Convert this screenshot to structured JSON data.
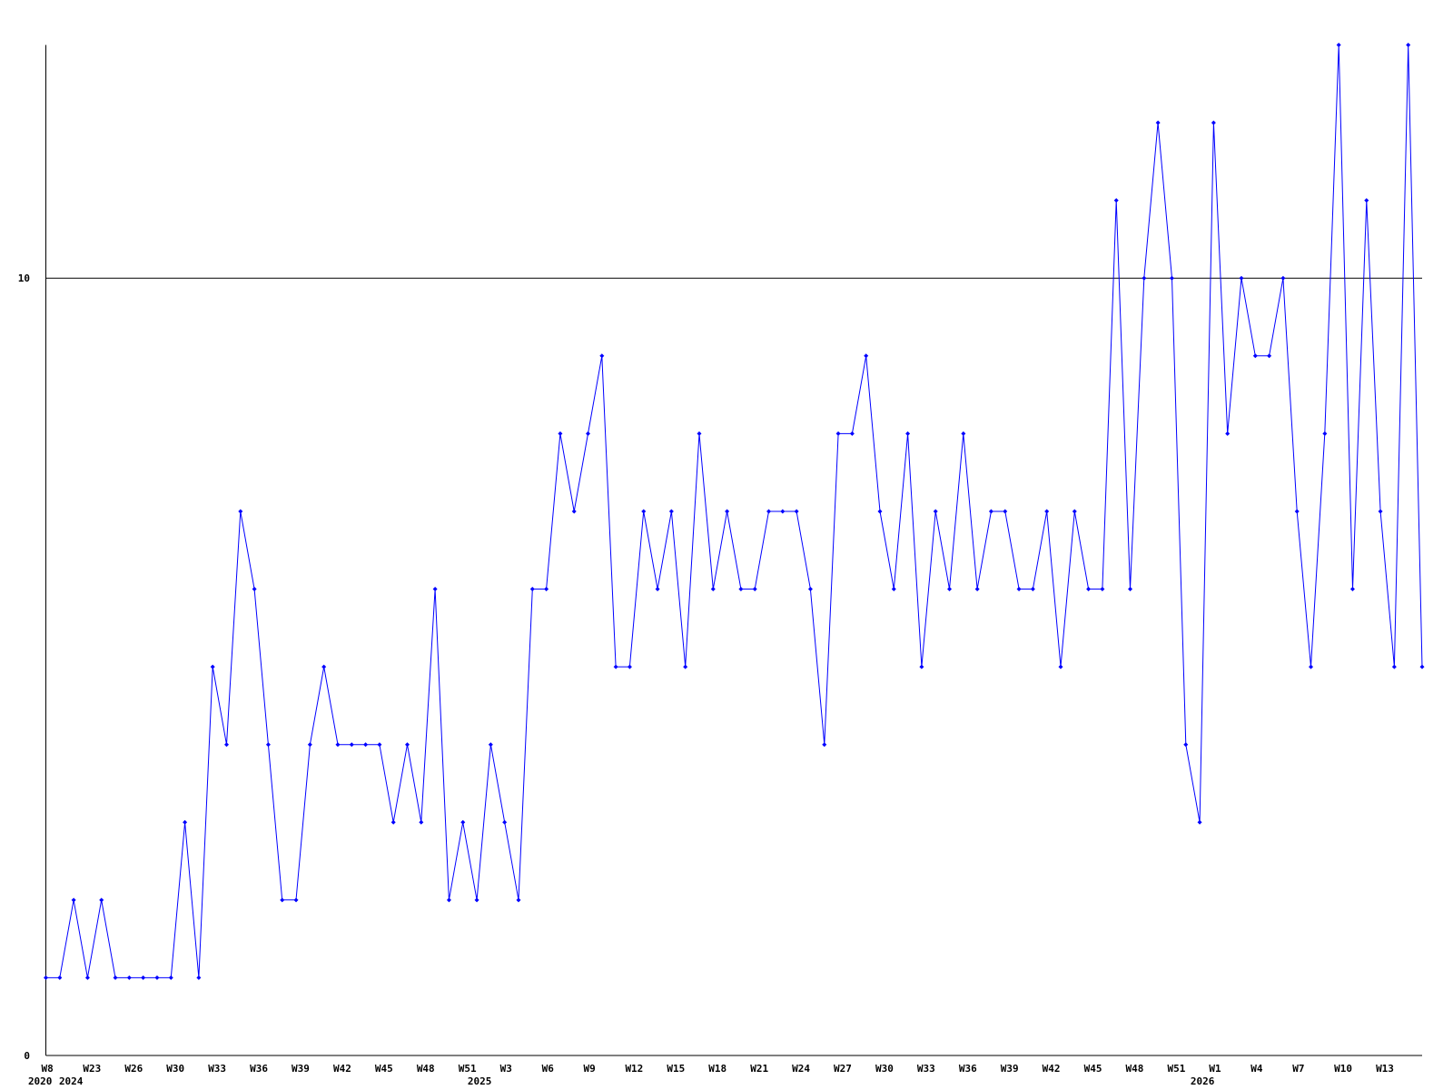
{
  "chart_data": {
    "type": "line",
    "title": "",
    "xlabel": "",
    "ylabel": "",
    "ylim": [
      0,
      13
    ],
    "y_ticks": [
      0,
      10
    ],
    "grid": "horizontal line at 10",
    "legend": "none",
    "colors": {
      "series": "#0000ff",
      "axis": "#000000"
    },
    "x_tick_labels": [
      {
        "index": 0,
        "label": "W8"
      },
      {
        "index": 3,
        "label": "W23"
      },
      {
        "index": 6,
        "label": "W26"
      },
      {
        "index": 9,
        "label": "W30"
      },
      {
        "index": 12,
        "label": "W33"
      },
      {
        "index": 15,
        "label": "W36"
      },
      {
        "index": 18,
        "label": "W39"
      },
      {
        "index": 21,
        "label": "W42"
      },
      {
        "index": 24,
        "label": "W45"
      },
      {
        "index": 27,
        "label": "W48"
      },
      {
        "index": 30,
        "label": "W51"
      },
      {
        "index": 33,
        "label": "W3"
      },
      {
        "index": 36,
        "label": "W6"
      },
      {
        "index": 39,
        "label": "W9"
      },
      {
        "index": 42,
        "label": "W12"
      },
      {
        "index": 45,
        "label": "W15"
      },
      {
        "index": 48,
        "label": "W18"
      },
      {
        "index": 51,
        "label": "W21"
      },
      {
        "index": 54,
        "label": "W24"
      },
      {
        "index": 57,
        "label": "W27"
      },
      {
        "index": 60,
        "label": "W30"
      },
      {
        "index": 63,
        "label": "W33"
      },
      {
        "index": 66,
        "label": "W36"
      },
      {
        "index": 69,
        "label": "W39"
      },
      {
        "index": 72,
        "label": "W42"
      },
      {
        "index": 75,
        "label": "W45"
      },
      {
        "index": 78,
        "label": "W48"
      },
      {
        "index": 81,
        "label": "W51"
      },
      {
        "index": 84,
        "label": "W1"
      },
      {
        "index": 87,
        "label": "W4"
      },
      {
        "index": 90,
        "label": "W7"
      },
      {
        "index": 93,
        "label": "W10"
      },
      {
        "index": 96,
        "label": "W13"
      }
    ],
    "year_labels": [
      {
        "index": 0,
        "label": "2020"
      },
      {
        "index": 1,
        "label": "2024"
      },
      {
        "index": 31,
        "label": "2025"
      },
      {
        "index": 83,
        "label": "2026"
      }
    ],
    "series": [
      {
        "values": [
          1,
          1,
          2,
          1,
          2,
          1,
          1,
          1,
          1,
          1,
          3,
          1,
          5,
          4,
          7,
          6,
          4,
          2,
          2,
          4,
          5,
          4,
          4,
          4,
          4,
          3,
          4,
          3,
          6,
          2,
          3,
          2,
          4,
          3,
          2,
          6,
          6,
          8,
          7,
          8,
          9,
          5,
          5,
          7,
          6,
          7,
          5,
          8,
          6,
          7,
          6,
          6,
          7,
          7,
          7,
          6,
          4,
          8,
          8,
          9,
          7,
          6,
          8,
          5,
          7,
          6,
          8,
          6,
          7,
          7,
          6,
          6,
          7,
          5,
          7,
          6,
          6,
          11,
          6,
          10,
          12,
          10,
          4,
          3,
          12,
          8,
          10,
          9,
          9,
          10,
          7,
          5,
          8,
          13,
          6,
          11,
          7,
          5,
          13,
          5
        ]
      }
    ]
  }
}
